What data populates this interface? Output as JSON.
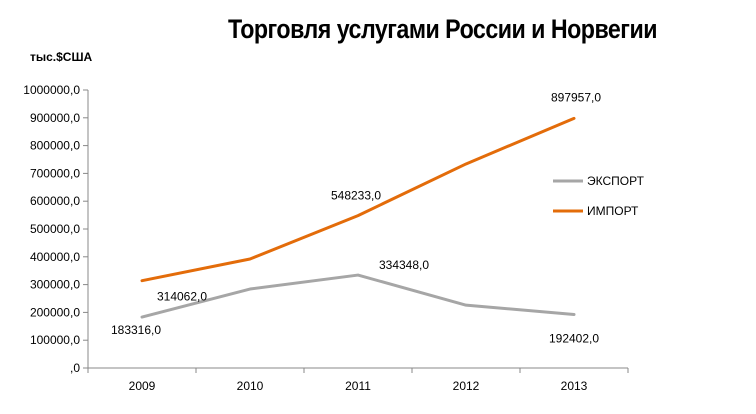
{
  "chart_data": {
    "type": "line",
    "title": "Торговля услугами России и Норвегии",
    "ylabel": "тыс.$США",
    "xlabel": "",
    "categories": [
      "2009",
      "2010",
      "2011",
      "2012",
      "2013"
    ],
    "ylim": [
      0,
      1000000
    ],
    "y_ticks": [
      "1000000,0",
      "900000,0",
      "800000,0",
      "700000,0",
      "600000,0",
      "500000,0",
      "400000,0",
      "300000,0",
      "200000,0",
      "100000,0",
      ",0"
    ],
    "y_tick_values": [
      1000000,
      900000,
      800000,
      700000,
      600000,
      500000,
      400000,
      300000,
      200000,
      100000,
      0
    ],
    "grid": false,
    "legend_position": "right",
    "series": [
      {
        "name": "ЭКСПОРТ",
        "color": "#a6a6a6",
        "values": [
          183316,
          284000,
          334348,
          226000,
          192402
        ],
        "labels": [
          "183316,0",
          "",
          "334348,0",
          "",
          "192402,0"
        ]
      },
      {
        "name": "ИМПОРТ",
        "color": "#e36c0a",
        "values": [
          314062,
          392000,
          548233,
          734000,
          897957
        ],
        "labels": [
          "314062,0",
          "",
          "548233,0",
          "",
          "897957,0"
        ]
      }
    ]
  }
}
